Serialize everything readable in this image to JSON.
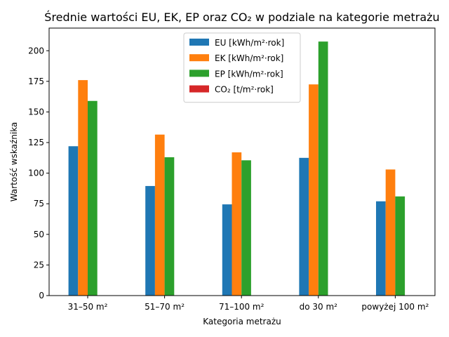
{
  "chart_data": {
    "type": "bar",
    "title": "Średnie wartości EU, EK, EP oraz CO₂ w podziale na kategorie metrażu",
    "xlabel": "Kategoria metrażu",
    "ylabel": "Wartość wskaźnika",
    "categories": [
      "31–50 m²",
      "51–70 m²",
      "71–100 m²",
      "do 30 m²",
      "powyżej 100 m²"
    ],
    "ylim": [
      0,
      218.5
    ],
    "yticks": [
      0,
      25,
      50,
      75,
      100,
      125,
      150,
      175,
      200
    ],
    "grid": false,
    "legend_position": "top-center",
    "series": [
      {
        "name": "EU [kWh/m²·rok]",
        "color": "#1f77b4",
        "values": [
          122,
          89.5,
          74.5,
          112.5,
          77
        ]
      },
      {
        "name": "EK [kWh/m²·rok]",
        "color": "#ff7f0e",
        "values": [
          176,
          131.5,
          117,
          172.5,
          103
        ]
      },
      {
        "name": "EP [kWh/m²·rok]",
        "color": "#2ca02c",
        "values": [
          159,
          113,
          110.5,
          207.5,
          81
        ]
      },
      {
        "name": "CO₂ [t/m²·rok]",
        "color": "#d62728",
        "values": [
          0.06,
          0.04,
          0.04,
          0.07,
          0.03
        ]
      }
    ]
  }
}
